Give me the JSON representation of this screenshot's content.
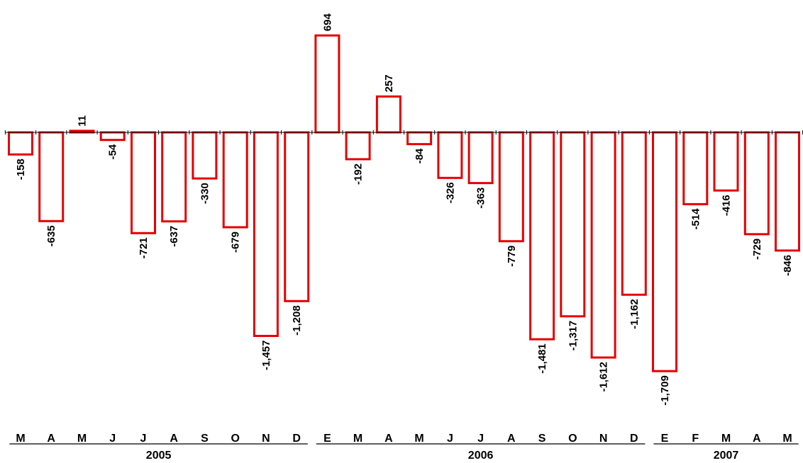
{
  "chart_data": {
    "type": "bar",
    "bar_color": "#e60000",
    "bar_fill": "#ffffff",
    "categories": [
      "M",
      "A",
      "M",
      "J",
      "J",
      "A",
      "S",
      "O",
      "N",
      "D",
      "E",
      "M",
      "A",
      "M",
      "J",
      "J",
      "A",
      "S",
      "O",
      "N",
      "D",
      "E",
      "F",
      "M",
      "A",
      "M"
    ],
    "values": [
      -158,
      -635,
      11,
      -54,
      -721,
      -637,
      -330,
      -679,
      -1457,
      -1208,
      694,
      -192,
      257,
      -84,
      -326,
      -363,
      -779,
      -1481,
      -1317,
      -1612,
      -1162,
      -1709,
      -514,
      -416,
      -729,
      -846
    ],
    "value_labels": [
      "-158",
      "-635",
      "11",
      "-54",
      "-721",
      "-637",
      "-330",
      "-679",
      "-1,457",
      "-1,208",
      "694",
      "-192",
      "257",
      "-84",
      "-326",
      "-363",
      "-779",
      "-1,481",
      "-1,317",
      "-1,612",
      "-1,162",
      "-1,709",
      "-514",
      "-416",
      "-729",
      "-846"
    ],
    "year_groups": [
      {
        "label": "2005",
        "start": 0,
        "end": 9
      },
      {
        "label": "2006",
        "start": 10,
        "end": 20
      },
      {
        "label": "2007",
        "start": 21,
        "end": 25
      }
    ],
    "ylim": [
      -2000,
      750
    ],
    "grid": false
  }
}
